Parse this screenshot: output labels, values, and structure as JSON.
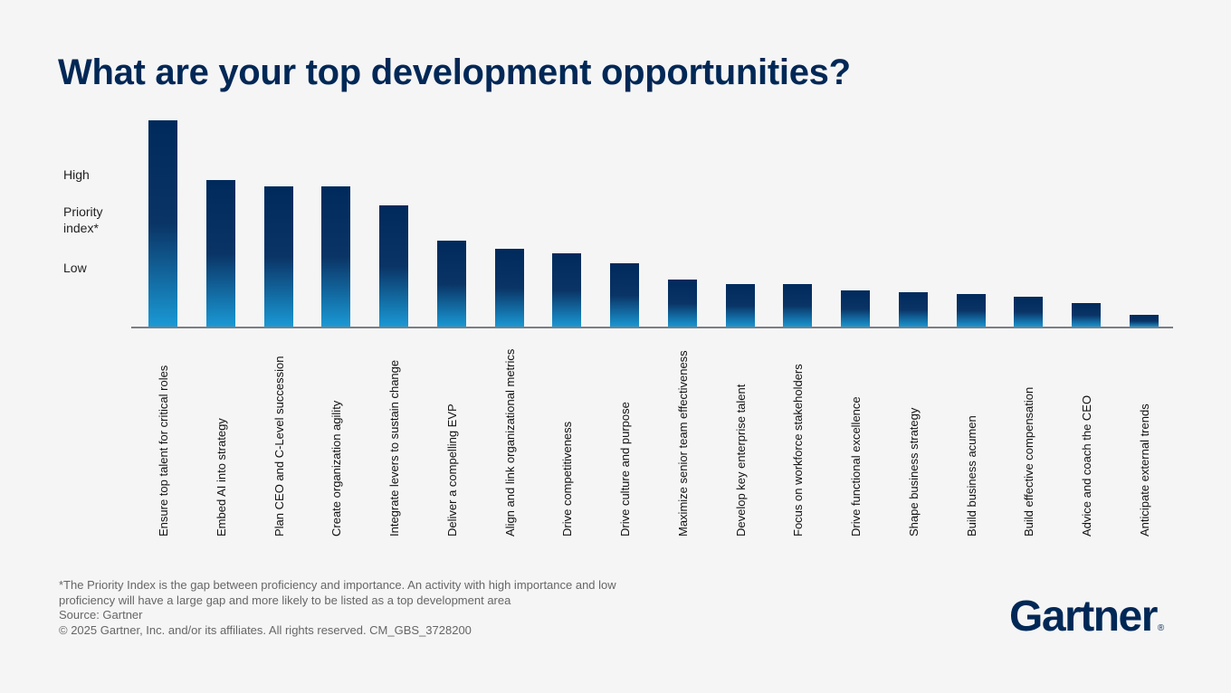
{
  "title": "What are your top development opportunities?",
  "colors": {
    "title": "#002856",
    "bar_top": "#002a5c",
    "bar_bottom": "#1a9ad6",
    "axis": "#7a7f85"
  },
  "chart_data": {
    "type": "bar",
    "title": "What are your top development opportunities?",
    "ylabel": "Priority index*",
    "y_tick_labels": [
      "High",
      "Low"
    ],
    "ylim": [
      0,
      100
    ],
    "value_note": "relative bar heights estimated, no numeric axis printed",
    "grid": false,
    "orientation": "vertical",
    "categories": [
      "Ensure top talent for critical roles",
      "Embed AI into strategy",
      "Plan CEO and C-Level succession",
      "Create organization agility",
      "Integrate levers to sustain change",
      "Deliver a compelling EVP",
      "Align and link organizational metrics",
      "Drive competitiveness",
      "Drive culture and purpose",
      "Maximize senior team effectiveness",
      "Develop key enterprise talent",
      "Focus on workforce stakeholders",
      "Drive functional excellence",
      "Shape business strategy",
      "Build business acumen",
      "Build effective compensation",
      "Advice and coach the CEO",
      "Anticipate external trends"
    ],
    "values": [
      100,
      71,
      68,
      68,
      59,
      42,
      38,
      36,
      31,
      23,
      21,
      21,
      18,
      17,
      16,
      15,
      12,
      6
    ]
  },
  "footnotes": {
    "definition": "*The Priority Index is the gap between proficiency and importance. An activity with high importance and low proficiency will have a large gap and more likely to be listed as a top development area",
    "source": "Source: Gartner",
    "copyright": "© 2025 Gartner, Inc. and/or its affiliates. All rights reserved. CM_GBS_3728200"
  },
  "logo": {
    "text": "Gartner",
    "mark": "®"
  }
}
